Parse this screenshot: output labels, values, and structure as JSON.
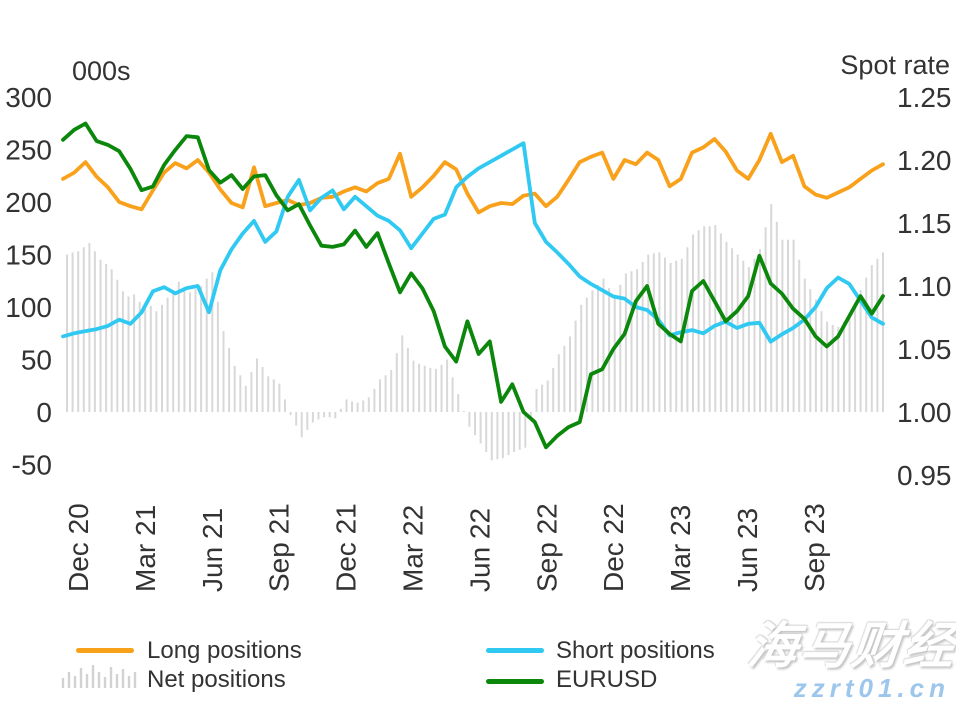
{
  "figure": {
    "left_axis": {
      "title": "000s",
      "ticks": [
        {
          "label": "300",
          "value": 300
        },
        {
          "label": "250",
          "value": 250
        },
        {
          "label": "200",
          "value": 200
        },
        {
          "label": "150",
          "value": 150
        },
        {
          "label": "100",
          "value": 100
        },
        {
          "label": "50",
          "value": 50
        },
        {
          "label": "0",
          "value": 0
        },
        {
          "label": "-50",
          "value": -50
        }
      ]
    },
    "right_axis": {
      "title": "Spot rate",
      "ticks": [
        {
          "label": "1.25",
          "value": 1.25
        },
        {
          "label": "1.20",
          "value": 1.2
        },
        {
          "label": "1.15",
          "value": 1.15
        },
        {
          "label": "1.10",
          "value": 1.1
        },
        {
          "label": "1.05",
          "value": 1.05
        },
        {
          "label": "1.00",
          "value": 1.0
        },
        {
          "label": "0.95",
          "value": 0.95
        }
      ]
    },
    "x_axis": {
      "labels": [
        "Dec 20",
        "Mar 21",
        "Jun 21",
        "Sep 21",
        "Dec 21",
        "Mar 22",
        "Jun 22",
        "Sep 22",
        "Dec 22",
        "Mar 23",
        "Jun 23",
        "Sep 23"
      ]
    },
    "legend": [
      {
        "label": "Long positions",
        "color": "#F9A11B",
        "type": "line"
      },
      {
        "label": "Net positions",
        "color": "#D8D8D8",
        "type": "bars"
      },
      {
        "label": "Short positions",
        "color": "#30C9F2",
        "type": "line"
      },
      {
        "label": "EURUSD",
        "color": "#0B870B",
        "type": "line"
      }
    ],
    "watermark": {
      "line1": "海马财经",
      "line2": "zzrt01.cn",
      "color": "#9cc6ec"
    }
  },
  "chart_data": {
    "type": "combo",
    "title": "",
    "x_start": "Dec 2020",
    "x_end": "Dec 2023",
    "x_tick_labels": [
      "Dec 20",
      "Mar 21",
      "Jun 21",
      "Sep 21",
      "Dec 21",
      "Mar 22",
      "Jun 22",
      "Sep 22",
      "Dec 22",
      "Mar 23",
      "Jun 23",
      "Sep 23"
    ],
    "left_ylabel": "000s",
    "right_ylabel": "Spot rate",
    "left_ylim": [
      -50,
      300
    ],
    "right_ylim": [
      0.95,
      1.25
    ],
    "grid": false,
    "legend_position": "bottom",
    "series": [
      {
        "id": "long-positions",
        "name": "Long positions",
        "type": "line",
        "axis": "left",
        "color": "#F9A11B",
        "interval": "biweekly",
        "values": [
          222,
          228,
          238,
          224,
          214,
          200,
          196,
          193,
          211,
          228,
          237,
          232,
          240,
          228,
          212,
          199,
          195,
          233,
          196,
          199,
          202,
          197,
          199,
          204,
          205,
          210,
          214,
          210,
          218,
          222,
          246,
          205,
          214,
          225,
          238,
          231,
          208,
          190,
          196,
          199,
          198,
          206,
          208,
          196,
          205,
          221,
          238,
          243,
          247,
          222,
          240,
          236,
          247,
          240,
          215,
          222,
          247,
          252,
          260,
          248,
          230,
          222,
          240,
          265,
          238,
          244,
          215,
          207,
          204,
          209,
          214,
          222,
          230,
          236
        ]
      },
      {
        "id": "short-positions",
        "name": "Short positions",
        "type": "line",
        "axis": "left",
        "color": "#30C9F2",
        "interval": "biweekly",
        "values": [
          72,
          75,
          77,
          79,
          82,
          88,
          84,
          95,
          115,
          119,
          113,
          118,
          120,
          95,
          135,
          155,
          170,
          182,
          162,
          172,
          205,
          221,
          192,
          204,
          211,
          193,
          205,
          196,
          187,
          182,
          173,
          156,
          170,
          184,
          188,
          214,
          224,
          232,
          238,
          244,
          250,
          256,
          180,
          162,
          152,
          141,
          129,
          122,
          116,
          110,
          108,
          100,
          97,
          88,
          73,
          76,
          78,
          75,
          82,
          86,
          80,
          84,
          85,
          67,
          74,
          80,
          88,
          100,
          118,
          128,
          122,
          106,
          90,
          84
        ]
      },
      {
        "id": "eurusd",
        "name": "EURUSD",
        "type": "line",
        "axis": "right",
        "color": "#0B870B",
        "interval": "biweekly",
        "values": [
          1.216,
          1.224,
          1.229,
          1.215,
          1.212,
          1.207,
          1.193,
          1.176,
          1.179,
          1.196,
          1.208,
          1.219,
          1.218,
          1.192,
          1.182,
          1.188,
          1.177,
          1.187,
          1.188,
          1.172,
          1.16,
          1.165,
          1.148,
          1.132,
          1.131,
          1.133,
          1.144,
          1.131,
          1.142,
          1.118,
          1.095,
          1.11,
          1.098,
          1.08,
          1.052,
          1.04,
          1.072,
          1.046,
          1.056,
          1.008,
          1.022,
          1.0,
          0.992,
          0.972,
          0.981,
          0.988,
          0.992,
          1.03,
          1.034,
          1.05,
          1.062,
          1.088,
          1.1,
          1.07,
          1.062,
          1.056,
          1.096,
          1.104,
          1.088,
          1.072,
          1.08,
          1.092,
          1.124,
          1.102,
          1.094,
          1.082,
          1.074,
          1.06,
          1.052,
          1.06,
          1.076,
          1.092,
          1.078,
          1.092
        ]
      },
      {
        "id": "net-positions",
        "name": "Net positions",
        "type": "bar",
        "axis": "left",
        "color": "#D8D8D8",
        "interval": "weekly",
        "values": [
          150,
          152,
          153,
          157,
          161,
          153,
          145,
          141,
          136,
          126,
          115,
          110,
          112,
          105,
          98,
          101,
          96,
          102,
          109,
          116,
          124,
          119,
          114,
          117,
          120,
          127,
          133,
          105,
          77,
          61,
          44,
          35,
          25,
          38,
          51,
          43,
          34,
          31,
          27,
          12,
          -3,
          -13,
          -24,
          -17,
          -10,
          -7,
          -5,
          -5,
          -6,
          3,
          12,
          10,
          9,
          11,
          14,
          22,
          31,
          35,
          40,
          56,
          73,
          61,
          49,
          46,
          44,
          42,
          41,
          45,
          50,
          33,
          17,
          1,
          -14,
          -22,
          -30,
          -38,
          -46,
          -45,
          -44,
          -41,
          -38,
          -36,
          -34,
          -6,
          22,
          26,
          30,
          42,
          55,
          63,
          72,
          87,
          102,
          109,
          116,
          121,
          127,
          118,
          110,
          121,
          132,
          134,
          136,
          143,
          150,
          151,
          152,
          147,
          142,
          144,
          146,
          157,
          169,
          173,
          177,
          177,
          178,
          170,
          162,
          156,
          150,
          144,
          138,
          146,
          155,
          176,
          198,
          181,
          164,
          164,
          164,
          145,
          127,
          117,
          107,
          96,
          86,
          83,
          81,
          86,
          92,
          104,
          116,
          128,
          140,
          146,
          152
        ]
      }
    ]
  }
}
